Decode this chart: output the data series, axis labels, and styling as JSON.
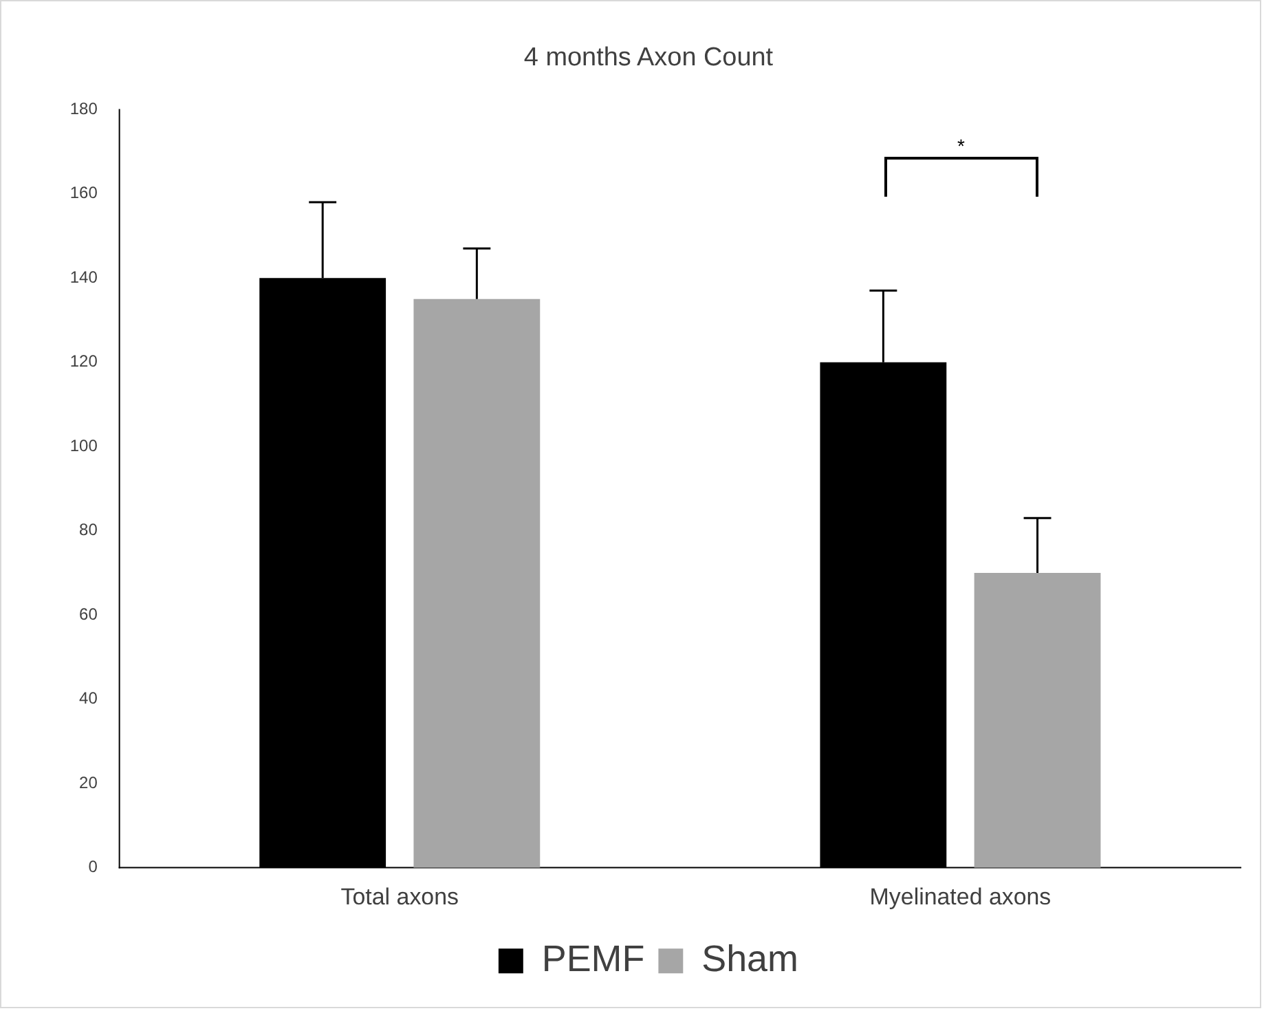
{
  "chart_data": {
    "type": "bar",
    "title": "4 months Axon Count",
    "categories": [
      "Total axons",
      "Myelinated axons"
    ],
    "series": [
      {
        "name": "PEMF",
        "color": "#000000",
        "values": [
          140,
          120
        ],
        "errors": [
          [
            140,
            158
          ],
          [
            120,
            137
          ]
        ]
      },
      {
        "name": "Sham",
        "color": "#a6a6a6",
        "values": [
          135,
          70
        ],
        "errors": [
          [
            135,
            147
          ],
          [
            70,
            83
          ]
        ]
      }
    ],
    "ylim": [
      0,
      180
    ],
    "yticks": [
      0,
      20,
      40,
      60,
      80,
      100,
      120,
      140,
      160,
      180
    ],
    "grid": false,
    "legend": "bottom",
    "annotations": [
      "*"
    ]
  }
}
